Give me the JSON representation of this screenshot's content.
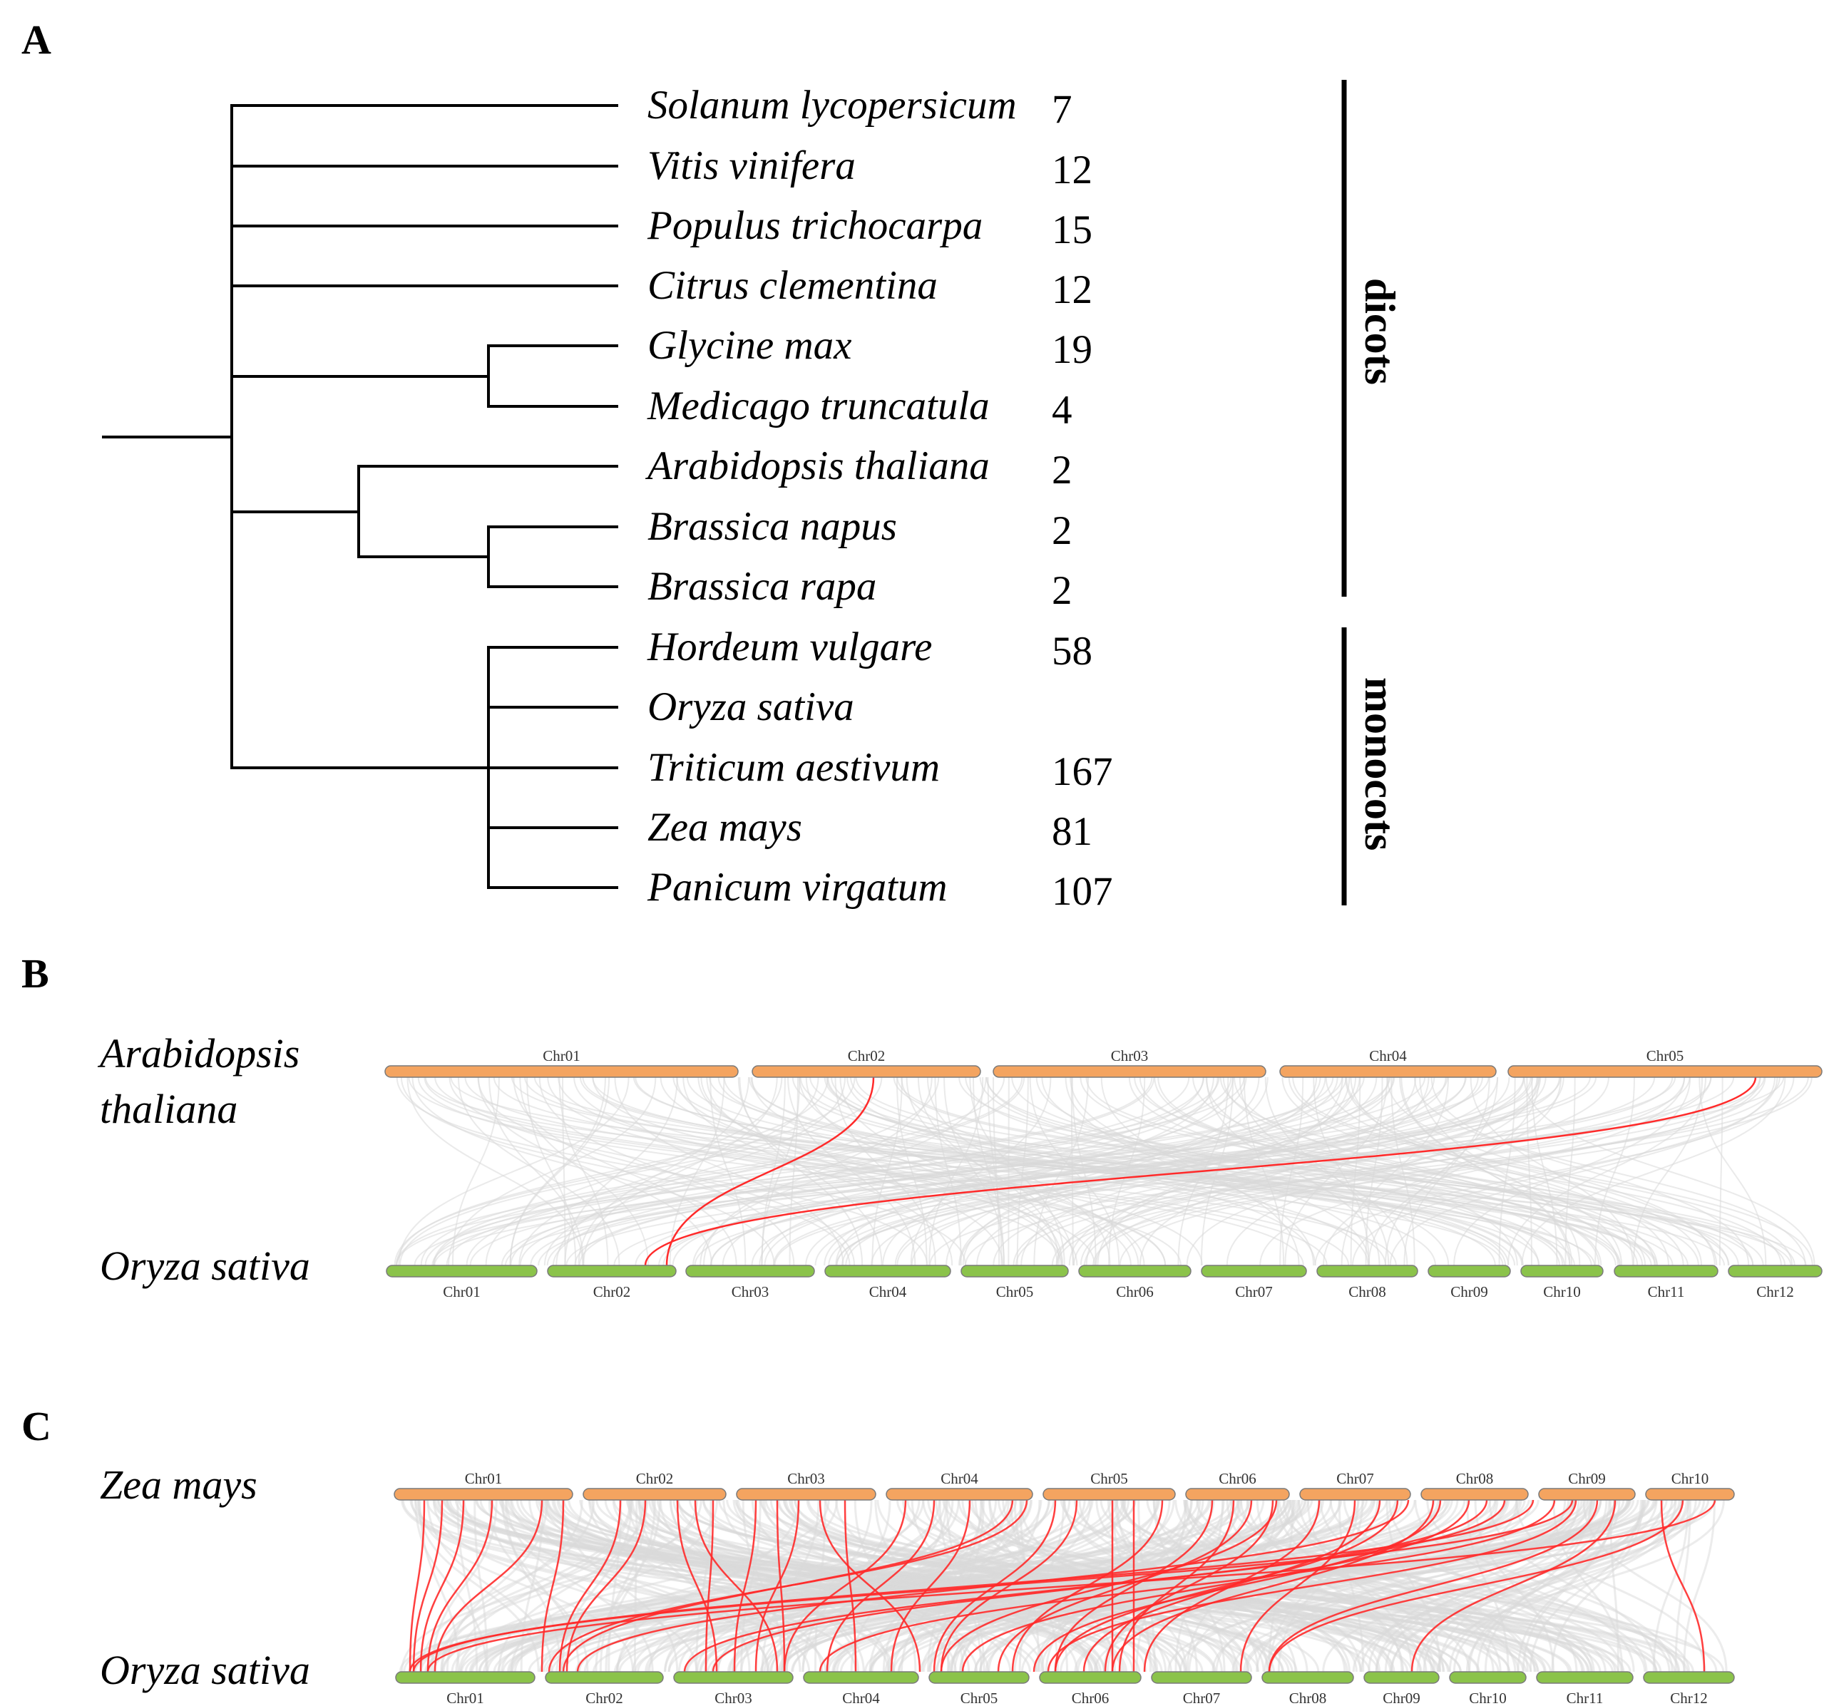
{
  "panelA": {
    "label": "A",
    "species": [
      {
        "name": "Solanum lycopersicum",
        "count": "7"
      },
      {
        "name": "Vitis vinifera",
        "count": "12"
      },
      {
        "name": "Populus trichocarpa",
        "count": "15"
      },
      {
        "name": "Citrus clementina",
        "count": "12"
      },
      {
        "name": "Glycine max",
        "count": "19"
      },
      {
        "name": "Medicago truncatula",
        "count": "4"
      },
      {
        "name": "Arabidopsis thaliana",
        "count": "2"
      },
      {
        "name": "Brassica napus",
        "count": "2"
      },
      {
        "name": "Brassica rapa",
        "count": "2"
      },
      {
        "name": "Hordeum vulgare",
        "count": "58"
      },
      {
        "name": "Oryza sativa",
        "count": ""
      },
      {
        "name": "Triticum aestivum",
        "count": "167"
      },
      {
        "name": "Zea mays",
        "count": "81"
      },
      {
        "name": "Panicum virgatum",
        "count": "107"
      }
    ],
    "groups": {
      "dicots": "dicots",
      "monocots": "monocots"
    }
  },
  "panelB": {
    "label": "B",
    "top_genome": {
      "line1": "Arabidopsis",
      "line2": "thaliana"
    },
    "bottom_genome": "Oryza sativa",
    "top_chrs": [
      "Chr01",
      "Chr02",
      "Chr03",
      "Chr04",
      "Chr05"
    ],
    "bottom_chrs": [
      "Chr01",
      "Chr02",
      "Chr03",
      "Chr04",
      "Chr05",
      "Chr06",
      "Chr07",
      "Chr08",
      "Chr09",
      "Chr10",
      "Chr11",
      "Chr12"
    ]
  },
  "panelC": {
    "label": "C",
    "top_genome": "Zea mays",
    "bottom_genome": "Oryza sativa",
    "top_chrs": [
      "Chr01",
      "Chr02",
      "Chr03",
      "Chr04",
      "Chr05",
      "Chr06",
      "Chr07",
      "Chr08",
      "Chr09",
      "Chr10"
    ],
    "bottom_chrs": [
      "Chr01",
      "Chr02",
      "Chr03",
      "Chr04",
      "Chr05",
      "Chr06",
      "Chr07",
      "Chr08",
      "Chr09",
      "Chr10",
      "Chr11",
      "Chr12"
    ]
  },
  "colors": {
    "top_chr": "#f4a460",
    "bottom_chr": "#8bc34a",
    "highlight_link": "#ff2a2a",
    "background_link": "#d9d9d9"
  }
}
